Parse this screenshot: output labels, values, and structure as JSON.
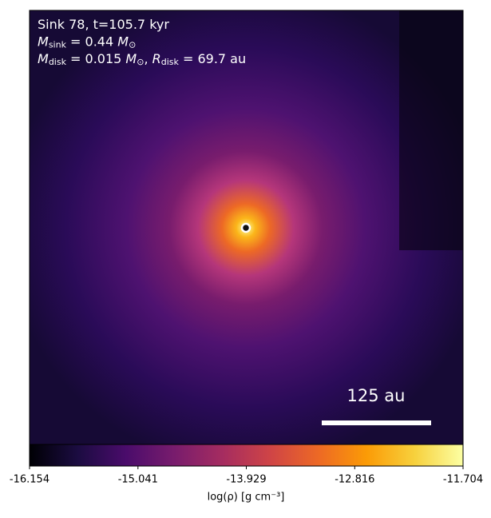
{
  "chart_data": {
    "type": "density-map",
    "annotations": [
      [
        {
          "text": "Sink 78, t=105.7 kyr"
        }
      ],
      [
        {
          "text": "M",
          "italic": true
        },
        {
          "text": "sink",
          "sub": true
        },
        {
          "text": " = 0.44 "
        },
        {
          "text": "M",
          "italic": true
        },
        {
          "text": "⊙",
          "sub": true
        }
      ],
      [
        {
          "text": "M",
          "italic": true
        },
        {
          "text": "disk",
          "sub": true
        },
        {
          "text": " = 0.015 "
        },
        {
          "text": "M",
          "italic": true
        },
        {
          "text": "⊙",
          "sub": true
        },
        {
          "text": ", "
        },
        {
          "text": "R",
          "italic": true
        },
        {
          "text": "disk",
          "sub": true
        },
        {
          "text": " = 69.7 au"
        }
      ]
    ],
    "scale_bar_label": "125 au",
    "colormap": "inferno",
    "colorbar": {
      "xlabel": "log(ρ) [g cm⁻³]",
      "xlim": [
        -16.154,
        -11.704
      ],
      "xticks": [
        -16.154,
        -15.041,
        -13.929,
        -12.816,
        -11.704
      ]
    }
  }
}
